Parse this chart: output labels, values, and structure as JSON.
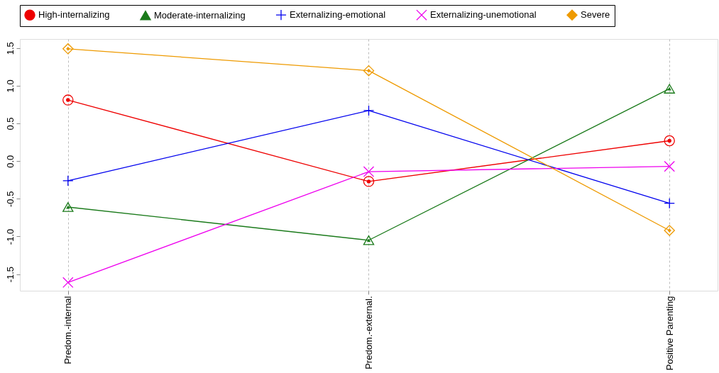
{
  "chart_data": {
    "type": "line",
    "categories": [
      "Predom.-internal",
      "Predom.-external.",
      "Positive Parenting"
    ],
    "series": [
      {
        "name": "High-internalizing",
        "color": "#ee0000",
        "marker": "circle",
        "values": [
          0.81,
          -0.27,
          0.27
        ]
      },
      {
        "name": "Moderate-internalizing",
        "color": "#1a7a1a",
        "marker": "triangle",
        "values": [
          -0.61,
          -1.05,
          0.96
        ]
      },
      {
        "name": "Externalizing-emotional",
        "color": "#0000ee",
        "marker": "cross",
        "values": [
          -0.26,
          0.67,
          -0.56
        ]
      },
      {
        "name": "Externalizing-unemotional",
        "color": "#ee00ee",
        "marker": "x",
        "values": [
          -1.61,
          -0.14,
          -0.07
        ]
      },
      {
        "name": "Severe",
        "color": "#ee9a00",
        "marker": "diamond",
        "values": [
          1.49,
          1.2,
          -0.92
        ]
      }
    ],
    "ylim": [
      -1.72,
      1.62
    ],
    "yticks": [
      {
        "value": -1.5,
        "label": "-1.5"
      },
      {
        "value": -1,
        "label": "-1.0"
      },
      {
        "value": -0.5,
        "label": "-0.5"
      },
      {
        "value": 0,
        "label": "0.0"
      },
      {
        "value": 0.5,
        "label": "0.5"
      },
      {
        "value": 1,
        "label": "1.0"
      },
      {
        "value": 1.5,
        "label": "1.5"
      }
    ],
    "grid": "x",
    "legend": "top",
    "line_style": "solid"
  }
}
